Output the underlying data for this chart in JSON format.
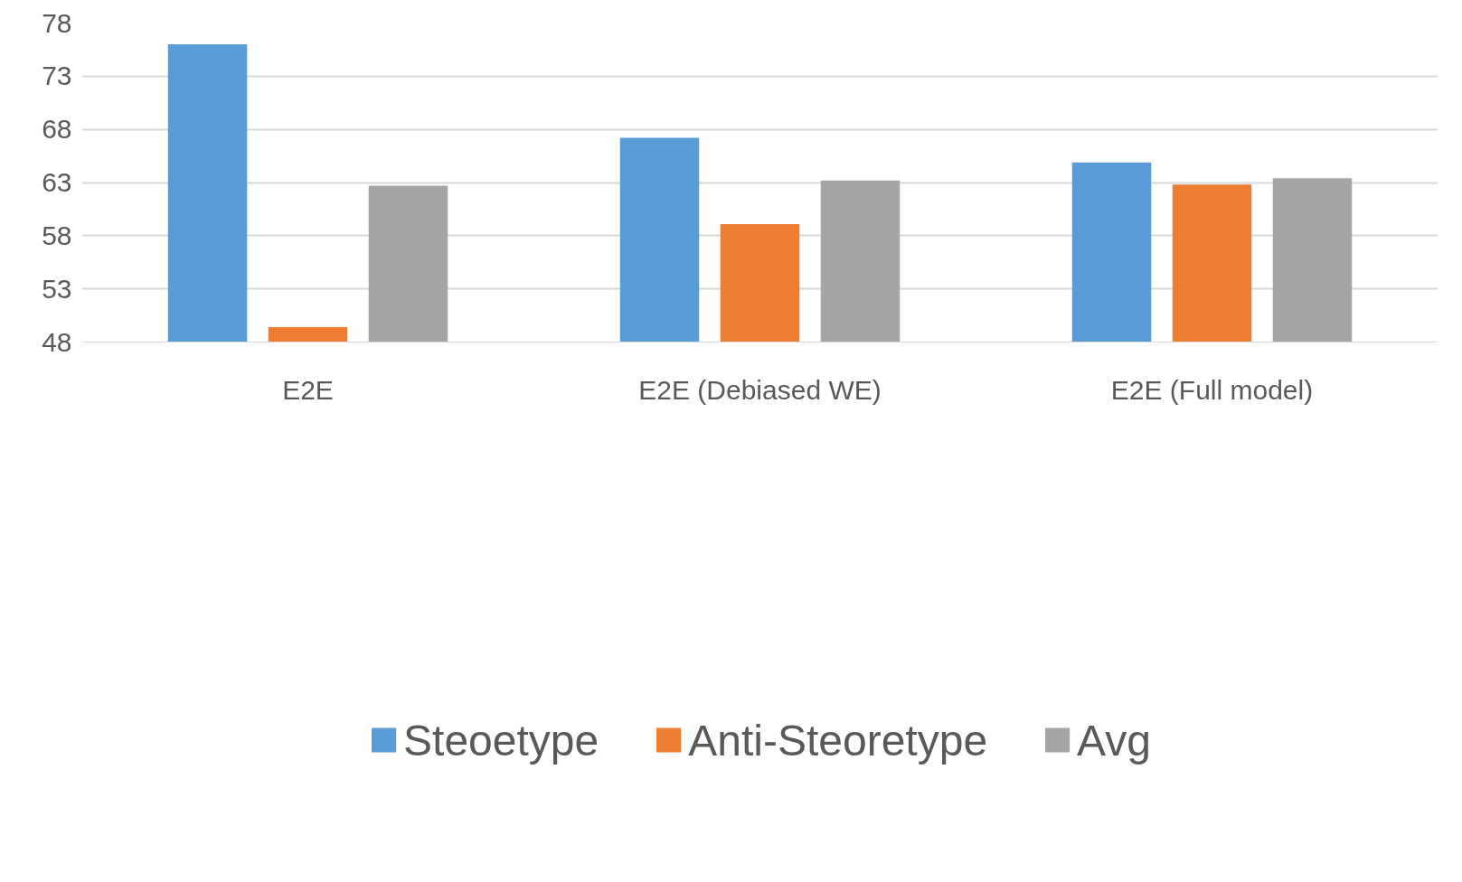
{
  "chart_data": {
    "type": "bar",
    "categories": [
      "E2E",
      "E2E (Debiased WE)",
      "E2E (Full model)"
    ],
    "series": [
      {
        "name": "Steoetype",
        "color": "#5b9bd5",
        "values": [
          76.0,
          67.2,
          64.9
        ]
      },
      {
        "name": "Anti-Steoretype",
        "color": "#ed7d31",
        "values": [
          49.4,
          59.1,
          62.8
        ]
      },
      {
        "name": "Avg",
        "color": "#a5a5a5",
        "values": [
          62.7,
          63.2,
          63.4
        ]
      }
    ],
    "ylim": [
      48,
      78
    ],
    "yticks": [
      48,
      53,
      58,
      63,
      68,
      73,
      78
    ],
    "grid": "y",
    "legend": "bottom"
  }
}
